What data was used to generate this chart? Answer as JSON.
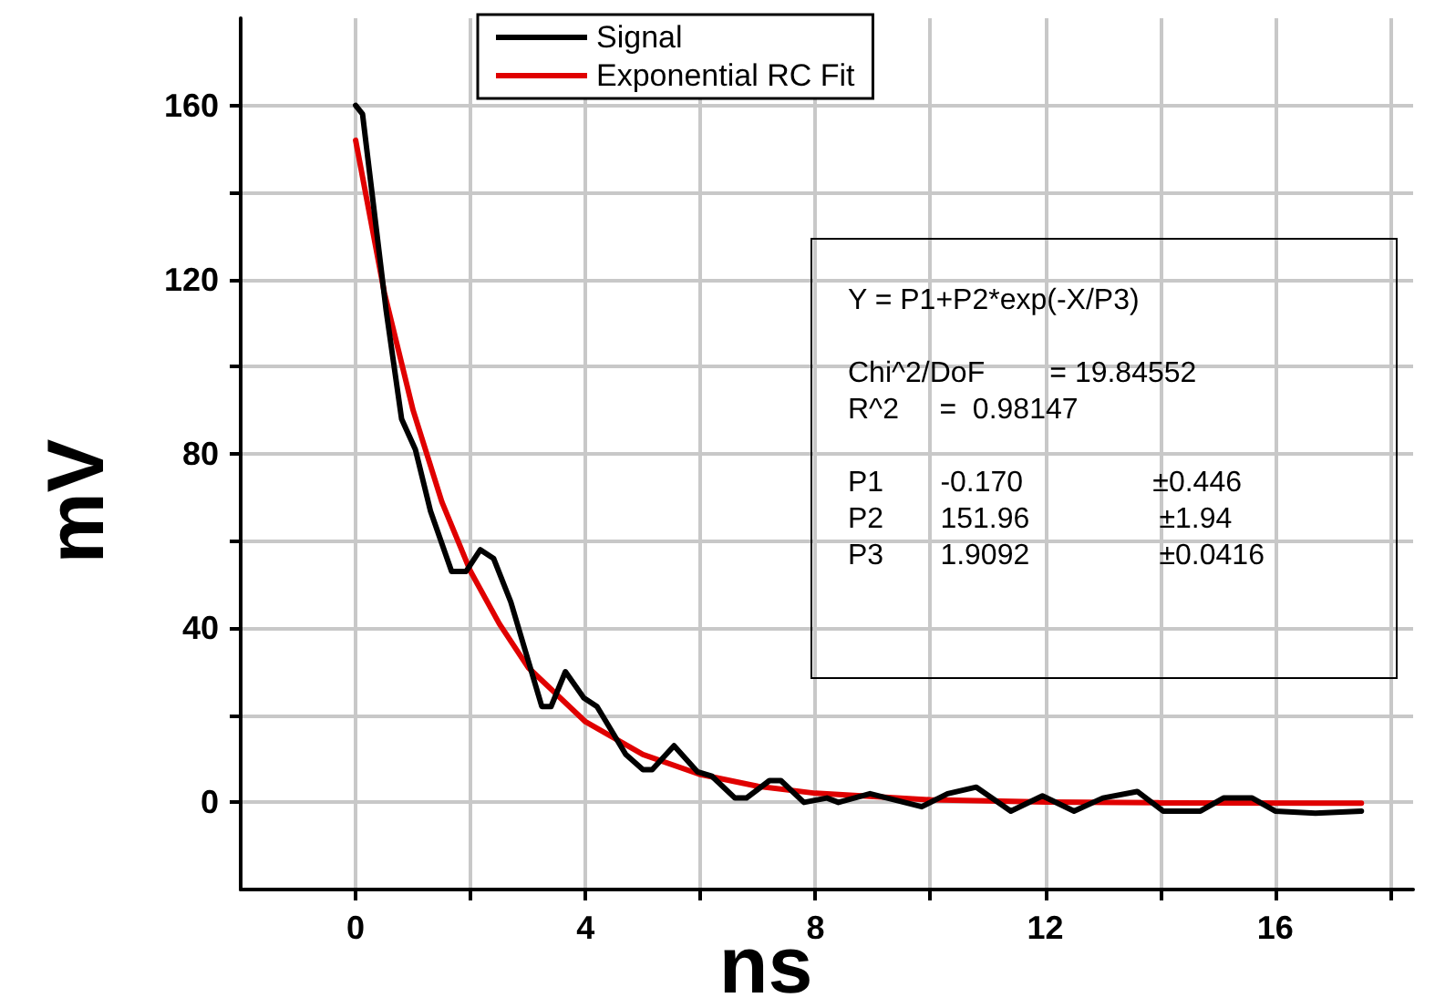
{
  "chart_data": {
    "type": "line",
    "xlabel": "ns",
    "ylabel": "mV",
    "xlim": [
      -2,
      18.4
    ],
    "ylim": [
      -20,
      180
    ],
    "xticks": [
      0,
      {
        "value": 2,
        "label": null
      },
      4,
      {
        "value": 6,
        "label": null
      },
      8,
      {
        "value": 10,
        "label": null
      },
      12,
      {
        "value": 14,
        "label": null
      },
      16,
      {
        "value": 18,
        "label": null
      }
    ],
    "yticks": [
      0,
      {
        "value": 20,
        "label": null
      },
      40,
      {
        "value": 60,
        "label": null
      },
      80,
      {
        "value": 100,
        "label": null
      },
      120,
      {
        "value": 140,
        "label": null
      },
      160
    ],
    "grid": true,
    "legend": "top",
    "marker": "none",
    "line_style": "solid",
    "series": [
      {
        "name": "Signal",
        "color": "#000000",
        "x": [
          0,
          0.12,
          0.53,
          0.8,
          1.04,
          1.3,
          1.67,
          1.92,
          2.17,
          2.4,
          2.7,
          3.24,
          3.4,
          3.65,
          3.97,
          4.2,
          4.7,
          5.0,
          5.16,
          5.54,
          5.95,
          6.2,
          6.6,
          6.8,
          7.2,
          7.4,
          7.8,
          8.2,
          8.4,
          8.95,
          9.85,
          10.3,
          10.8,
          11.4,
          11.95,
          12.5,
          13.0,
          13.6,
          14.05,
          14.7,
          15.1,
          15.6,
          16.0,
          16.7,
          17.5
        ],
        "values": [
          160,
          158,
          113,
          88,
          81,
          67,
          53,
          53,
          58,
          56,
          46,
          22,
          22,
          30,
          24,
          22,
          11,
          7.5,
          7.5,
          13,
          7,
          6,
          1,
          1,
          5,
          5,
          0,
          1,
          0,
          2,
          -1,
          2,
          3.5,
          -2,
          1.5,
          -2,
          1,
          2.5,
          -2,
          -2,
          1,
          1,
          -2,
          -2.5,
          -2
        ]
      },
      {
        "name": "Exponential RC Fit",
        "color": "#e00000",
        "x": [
          0,
          0.5,
          1,
          1.5,
          2,
          2.5,
          3,
          4,
          5,
          6,
          7,
          8,
          10,
          12,
          14,
          17.5
        ],
        "values": [
          152,
          117,
          90,
          69,
          53,
          41,
          31,
          18.5,
          11,
          6.4,
          3.7,
          2.1,
          0.6,
          0.1,
          -0.1,
          -0.2
        ]
      }
    ],
    "annotations": [
      "Y = P1+P2*exp(-X/P3)",
      "Chi^2/DoF        = 19.84552\nR^2     =  0.98147",
      "P1       -0.170                ±0.446\nP2       151.96                ±1.94\nP3       1.9092                ±0.0416"
    ]
  }
}
